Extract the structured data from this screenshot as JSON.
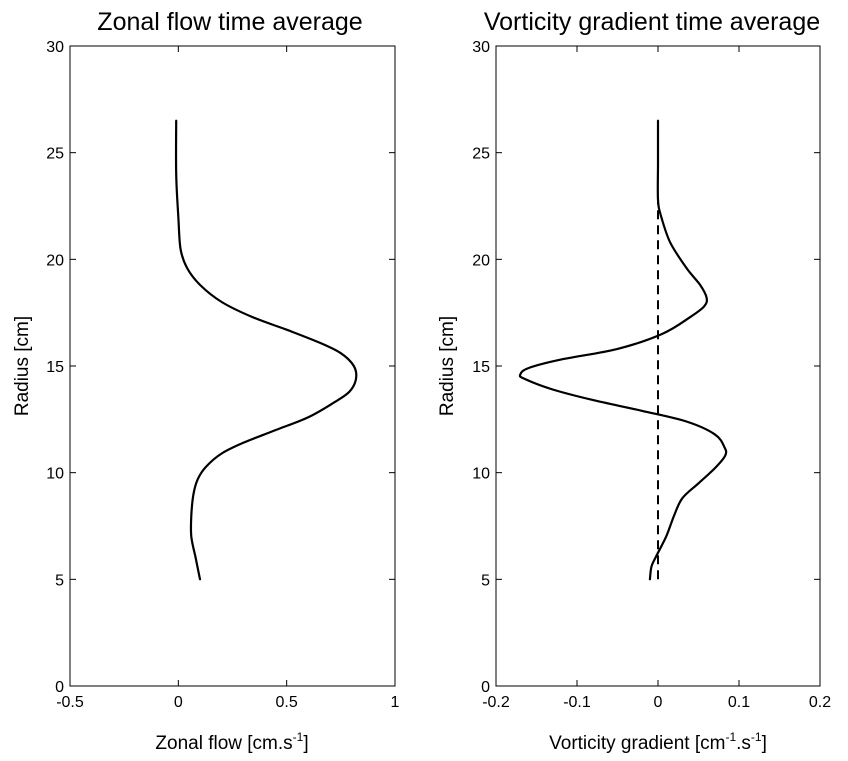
{
  "chart_data": [
    {
      "type": "line",
      "title": "Zonal flow time average",
      "xlabel": {
        "main": "Zonal flow [cm.s",
        "sup": "-1",
        "close": "]"
      },
      "ylabel": "Radius [cm]",
      "xlim": [
        -0.5,
        1
      ],
      "ylim": [
        0,
        30
      ],
      "xticks": [
        "-0.5",
        "0",
        "0.5",
        "1"
      ],
      "xtick_values": [
        -0.5,
        0,
        0.5,
        1
      ],
      "yticks": [
        "0",
        "5",
        "10",
        "15",
        "20",
        "25",
        "30"
      ],
      "ytick_values": [
        0,
        5,
        10,
        15,
        20,
        25,
        30
      ],
      "grid": false,
      "series": [
        {
          "x": [
            0.1,
            0.08,
            0.06,
            0.06,
            0.07,
            0.09,
            0.13,
            0.2,
            0.3,
            0.45,
            0.6,
            0.72,
            0.79,
            0.82,
            0.81,
            0.75,
            0.65,
            0.5,
            0.34,
            0.2,
            0.1,
            0.04,
            0.01,
            0.0,
            -0.01,
            -0.01
          ],
          "y": [
            5,
            6,
            7,
            8,
            9,
            9.7,
            10.3,
            10.9,
            11.4,
            12,
            12.6,
            13.3,
            13.8,
            14.4,
            15.0,
            15.6,
            16.1,
            16.7,
            17.3,
            18,
            18.8,
            19.6,
            20.5,
            22,
            24,
            26.5
          ]
        }
      ]
    },
    {
      "type": "line",
      "title": "Vorticity gradient time average",
      "xlabel": {
        "main": "Vorticity gradient [cm",
        "sup1": "-1",
        "mid": ".s",
        "sup2": "-1",
        "close": "]"
      },
      "ylabel": "Radius [cm]",
      "xlim": [
        -0.2,
        0.2
      ],
      "ylim": [
        0,
        30
      ],
      "xticks": [
        "-0.2",
        "-0.1",
        "0",
        "0.1",
        "0.2"
      ],
      "xtick_values": [
        -0.2,
        -0.1,
        0,
        0.1,
        0.2
      ],
      "yticks": [
        "0",
        "5",
        "10",
        "15",
        "20",
        "25",
        "30"
      ],
      "ytick_values": [
        0,
        5,
        10,
        15,
        20,
        25,
        30
      ],
      "grid": false,
      "series": [
        {
          "style": "solid",
          "x": [
            -0.01,
            -0.008,
            -0.002,
            0.01,
            0.02,
            0.03,
            0.05,
            0.07,
            0.083,
            0.082,
            0.07,
            0.035,
            -0.02,
            -0.08,
            -0.13,
            -0.165,
            -0.17,
            -0.16,
            -0.12,
            -0.05,
            0.005,
            0.04,
            0.057,
            0.06,
            0.052,
            0.035,
            0.015,
            0.004,
            0.0,
            0.0,
            0.0
          ],
          "y": [
            5,
            5.6,
            6.1,
            7,
            8,
            8.8,
            9.5,
            10.2,
            10.8,
            11.2,
            11.8,
            12.4,
            12.9,
            13.4,
            13.9,
            14.4,
            14.6,
            14.9,
            15.3,
            15.8,
            16.5,
            17.3,
            17.8,
            18.2,
            18.8,
            19.6,
            20.8,
            22,
            22.8,
            24.5,
            26.5
          ]
        },
        {
          "style": "dashed",
          "x": [
            0,
            0
          ],
          "y": [
            5,
            22.8
          ]
        }
      ]
    }
  ]
}
